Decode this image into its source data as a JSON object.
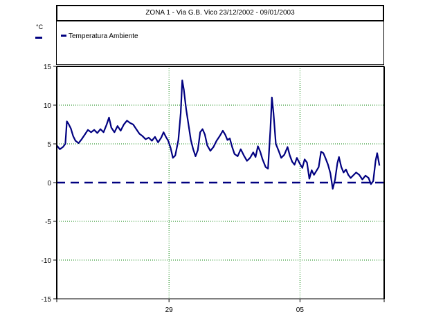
{
  "chart_data": {
    "type": "line",
    "title": "ZONA 1 - Via G.B. Vico     23/12/2002 - 09/01/2003",
    "ylabel": "°C",
    "ylim": [
      -15,
      15
    ],
    "yticks": [
      15,
      10,
      5,
      0,
      -5,
      -10,
      -15
    ],
    "x_range_days": [
      "2002-12-23",
      "2003-01-09"
    ],
    "xticks": [
      {
        "date": "2002-12-29",
        "label": "29"
      },
      {
        "date": "2003-01-05",
        "label": "05"
      }
    ],
    "grid": true,
    "legend_position": "top-left",
    "reference_line": {
      "y": 0,
      "style": "dashed",
      "color": "#000080"
    },
    "series": [
      {
        "name": "Temperatura Ambiente",
        "color": "#000080",
        "points": [
          [
            "2002-12-23 00:00",
            4.8
          ],
          [
            "2002-12-23 04:00",
            4.3
          ],
          [
            "2002-12-23 08:00",
            4.6
          ],
          [
            "2002-12-23 11:00",
            5.0
          ],
          [
            "2002-12-23 13:00",
            7.9
          ],
          [
            "2002-12-23 15:00",
            7.6
          ],
          [
            "2002-12-23 18:00",
            7.0
          ],
          [
            "2002-12-23 21:00",
            6.0
          ],
          [
            "2002-12-24 00:00",
            5.4
          ],
          [
            "2002-12-24 04:00",
            5.1
          ],
          [
            "2002-12-24 08:00",
            5.6
          ],
          [
            "2002-12-24 12:00",
            6.2
          ],
          [
            "2002-12-24 16:00",
            6.8
          ],
          [
            "2002-12-24 20:00",
            6.5
          ],
          [
            "2002-12-25 00:00",
            6.8
          ],
          [
            "2002-12-25 04:00",
            6.4
          ],
          [
            "2002-12-25 08:00",
            6.9
          ],
          [
            "2002-12-25 12:00",
            6.5
          ],
          [
            "2002-12-25 16:00",
            7.5
          ],
          [
            "2002-12-25 19:00",
            8.4
          ],
          [
            "2002-12-25 22:00",
            7.1
          ],
          [
            "2002-12-26 02:00",
            6.5
          ],
          [
            "2002-12-26 06:00",
            7.3
          ],
          [
            "2002-12-26 10:00",
            6.7
          ],
          [
            "2002-12-26 14:00",
            7.5
          ],
          [
            "2002-12-26 18:00",
            8.0
          ],
          [
            "2002-12-26 22:00",
            7.7
          ],
          [
            "2002-12-27 02:00",
            7.5
          ],
          [
            "2002-12-27 06:00",
            6.9
          ],
          [
            "2002-12-27 10:00",
            6.3
          ],
          [
            "2002-12-27 14:00",
            6.0
          ],
          [
            "2002-12-27 18:00",
            5.6
          ],
          [
            "2002-12-27 22:00",
            5.8
          ],
          [
            "2002-12-28 02:00",
            5.4
          ],
          [
            "2002-12-28 06:00",
            5.9
          ],
          [
            "2002-12-28 10:00",
            5.2
          ],
          [
            "2002-12-28 14:00",
            5.8
          ],
          [
            "2002-12-28 17:00",
            6.5
          ],
          [
            "2002-12-28 20:00",
            5.9
          ],
          [
            "2002-12-28 23:00",
            5.4
          ],
          [
            "2002-12-29 02:00",
            4.5
          ],
          [
            "2002-12-29 05:00",
            3.2
          ],
          [
            "2002-12-29 08:00",
            3.5
          ],
          [
            "2002-12-29 12:00",
            5.5
          ],
          [
            "2002-12-29 15:00",
            9.0
          ],
          [
            "2002-12-29 17:00",
            13.2
          ],
          [
            "2002-12-29 19:00",
            12.0
          ],
          [
            "2002-12-29 22:00",
            9.5
          ],
          [
            "2002-12-30 01:00",
            7.5
          ],
          [
            "2002-12-30 04:00",
            5.5
          ],
          [
            "2002-12-30 07:00",
            4.3
          ],
          [
            "2002-12-30 10:00",
            3.4
          ],
          [
            "2002-12-30 13:00",
            4.2
          ],
          [
            "2002-12-30 16:00",
            6.5
          ],
          [
            "2002-12-30 19:00",
            6.9
          ],
          [
            "2002-12-30 22:00",
            6.2
          ],
          [
            "2002-12-31 01:00",
            4.8
          ],
          [
            "2002-12-31 05:00",
            4.1
          ],
          [
            "2002-12-31 09:00",
            4.6
          ],
          [
            "2002-12-31 13:00",
            5.4
          ],
          [
            "2002-12-31 17:00",
            6.0
          ],
          [
            "2002-12-31 21:00",
            6.7
          ],
          [
            "2003-01-01 00:00",
            6.2
          ],
          [
            "2003-01-01 03:00",
            5.5
          ],
          [
            "2003-01-01 06:00",
            5.7
          ],
          [
            "2003-01-01 09:00",
            4.6
          ],
          [
            "2003-01-01 12:00",
            3.7
          ],
          [
            "2003-01-01 16:00",
            3.4
          ],
          [
            "2003-01-01 20:00",
            4.3
          ],
          [
            "2003-01-02 00:00",
            3.5
          ],
          [
            "2003-01-02 04:00",
            2.8
          ],
          [
            "2003-01-02 08:00",
            3.2
          ],
          [
            "2003-01-02 12:00",
            3.9
          ],
          [
            "2003-01-02 15:00",
            3.3
          ],
          [
            "2003-01-02 18:00",
            4.7
          ],
          [
            "2003-01-02 21:00",
            4.0
          ],
          [
            "2003-01-03 00:00",
            3.0
          ],
          [
            "2003-01-03 04:00",
            2.0
          ],
          [
            "2003-01-03 07:00",
            1.8
          ],
          [
            "2003-01-03 10:00",
            6.8
          ],
          [
            "2003-01-03 12:00",
            11.0
          ],
          [
            "2003-01-03 14:00",
            9.0
          ],
          [
            "2003-01-03 17:00",
            5.0
          ],
          [
            "2003-01-03 21:00",
            4.0
          ],
          [
            "2003-01-04 00:00",
            3.2
          ],
          [
            "2003-01-04 04:00",
            3.6
          ],
          [
            "2003-01-04 08:00",
            4.6
          ],
          [
            "2003-01-04 11:00",
            3.5
          ],
          [
            "2003-01-04 14:00",
            2.7
          ],
          [
            "2003-01-04 17:00",
            2.3
          ],
          [
            "2003-01-04 20:00",
            3.2
          ],
          [
            "2003-01-05 00:00",
            2.4
          ],
          [
            "2003-01-05 03:00",
            1.9
          ],
          [
            "2003-01-05 06:00",
            3.0
          ],
          [
            "2003-01-05 09:00",
            2.6
          ],
          [
            "2003-01-05 12:00",
            0.5
          ],
          [
            "2003-01-05 15:00",
            1.6
          ],
          [
            "2003-01-05 18:00",
            1.0
          ],
          [
            "2003-01-05 21:00",
            1.5
          ],
          [
            "2003-01-06 00:00",
            2.0
          ],
          [
            "2003-01-06 03:00",
            4.0
          ],
          [
            "2003-01-06 06:00",
            3.8
          ],
          [
            "2003-01-06 09:00",
            3.1
          ],
          [
            "2003-01-06 12:00",
            2.3
          ],
          [
            "2003-01-06 15:00",
            1.2
          ],
          [
            "2003-01-06 18:00",
            -0.8
          ],
          [
            "2003-01-06 21:00",
            0.4
          ],
          [
            "2003-01-07 00:00",
            2.5
          ],
          [
            "2003-01-07 02:00",
            3.3
          ],
          [
            "2003-01-07 05:00",
            2.0
          ],
          [
            "2003-01-07 08:00",
            1.3
          ],
          [
            "2003-01-07 11:00",
            1.7
          ],
          [
            "2003-01-07 14:00",
            1.0
          ],
          [
            "2003-01-07 17:00",
            0.6
          ],
          [
            "2003-01-07 20:00",
            0.9
          ],
          [
            "2003-01-08 00:00",
            1.3
          ],
          [
            "2003-01-08 04:00",
            1.0
          ],
          [
            "2003-01-08 08:00",
            0.4
          ],
          [
            "2003-01-08 12:00",
            0.9
          ],
          [
            "2003-01-08 16:00",
            0.6
          ],
          [
            "2003-01-08 19:00",
            -0.2
          ],
          [
            "2003-01-08 22:00",
            0.2
          ],
          [
            "2003-01-09 01:00",
            2.8
          ],
          [
            "2003-01-09 03:00",
            3.8
          ],
          [
            "2003-01-09 06:00",
            2.2
          ]
        ]
      }
    ]
  }
}
